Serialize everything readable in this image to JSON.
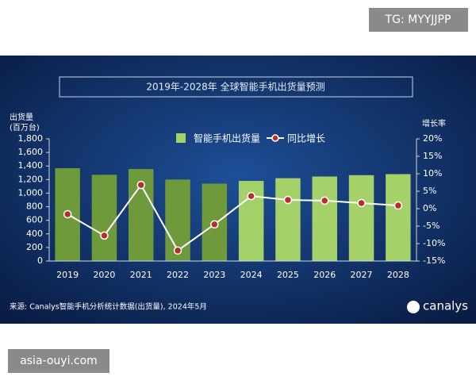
{
  "watermarks": {
    "top": "TG: MYYJJPP",
    "bottom": "asia-ouyi.com"
  },
  "chart_data": {
    "type": "combo",
    "title": "2019年-2028年 全球智能手机出货量预测",
    "ylabel": [
      "出货量",
      "(百万台)"
    ],
    "y2label": "增长率",
    "categories": [
      "2019",
      "2020",
      "2021",
      "2022",
      "2023",
      "2024",
      "2025",
      "2026",
      "2027",
      "2028"
    ],
    "series": [
      {
        "name": "智能手机出货量",
        "type": "bar",
        "color": "#a5d16b",
        "colors": [
          "#6e9a3c",
          "#6e9a3c",
          "#6e9a3c",
          "#6e9a3c",
          "#6e9a3c",
          "#a5d16b",
          "#a5d16b",
          "#a5d16b",
          "#a5d16b",
          "#a5d16b"
        ],
        "values": [
          1367,
          1270,
          1355,
          1200,
          1140,
          1180,
          1220,
          1245,
          1265,
          1280
        ]
      },
      {
        "name": "同比增长",
        "type": "line",
        "axis": "y2",
        "color": "#ffffff",
        "marker_color": "#b5302a",
        "values": [
          -1.6,
          -7.7,
          6.8,
          -12,
          -4.5,
          3.6,
          2.5,
          2.3,
          1.6,
          0.9
        ]
      }
    ],
    "ylim": [
      0,
      1800
    ],
    "yticks": [
      0,
      200,
      400,
      600,
      800,
      {
        "value": 1000,
        "label": "1,000"
      },
      {
        "value": 1200,
        "label": "1,200"
      },
      {
        "value": 1400,
        "label": "1,400"
      },
      {
        "value": 1600,
        "label": "1,600"
      },
      {
        "value": 1800,
        "label": "1,800"
      }
    ],
    "y2lim": [
      -15,
      20
    ],
    "y2ticks": [
      {
        "value": -15,
        "label": "-15%"
      },
      {
        "value": -10,
        "label": "-10%"
      },
      {
        "value": -5,
        "label": "-5%"
      },
      {
        "value": 0,
        "label": "0%"
      },
      {
        "value": 5,
        "label": "5%"
      },
      {
        "value": 10,
        "label": "10%"
      },
      {
        "value": 15,
        "label": "15%"
      },
      {
        "value": 20,
        "label": "20%"
      }
    ],
    "source": "来源: Canalys智能手机分析统计数据(出货量), 2024年5月",
    "logo": "canalys"
  }
}
